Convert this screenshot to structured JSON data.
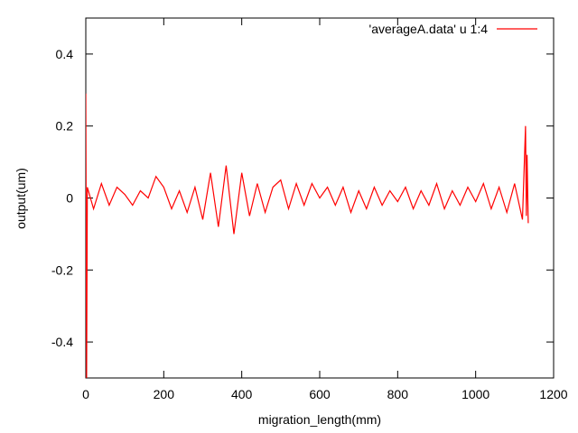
{
  "chart_data": {
    "type": "line",
    "xlabel": "migration_length(mm)",
    "ylabel": "output(um)",
    "xlim": [
      0,
      1200
    ],
    "ylim": [
      -0.5,
      0.5
    ],
    "xticks": [
      0,
      200,
      400,
      600,
      800,
      1000,
      1200
    ],
    "yticks": [
      -0.4,
      -0.2,
      0,
      0.2,
      0.4
    ],
    "ytick_labels": [
      "-0.4",
      "-0.2",
      "0",
      "0.2",
      "0.4"
    ],
    "grid": false,
    "legend_position": "top-right",
    "series": [
      {
        "name": "'averageA.data' u 1:4",
        "color": "#ff0000",
        "x": [
          0,
          2,
          4,
          20,
          40,
          60,
          80,
          100,
          120,
          140,
          160,
          180,
          200,
          220,
          240,
          260,
          280,
          300,
          320,
          340,
          360,
          380,
          400,
          420,
          440,
          460,
          480,
          500,
          520,
          540,
          560,
          580,
          600,
          620,
          640,
          660,
          680,
          700,
          720,
          740,
          760,
          780,
          800,
          820,
          840,
          860,
          880,
          900,
          920,
          940,
          960,
          980,
          1000,
          1020,
          1040,
          1060,
          1080,
          1100,
          1120,
          1128,
          1130,
          1132,
          1135
        ],
        "y": [
          0.29,
          -0.5,
          0.03,
          -0.03,
          0.04,
          -0.02,
          0.03,
          0.01,
          -0.02,
          0.02,
          0.0,
          0.06,
          0.03,
          -0.03,
          0.02,
          -0.04,
          0.03,
          -0.06,
          0.07,
          -0.08,
          0.09,
          -0.1,
          0.07,
          -0.05,
          0.04,
          -0.04,
          0.03,
          0.05,
          -0.03,
          0.04,
          -0.02,
          0.04,
          0.0,
          0.03,
          -0.02,
          0.03,
          -0.04,
          0.02,
          -0.03,
          0.03,
          -0.02,
          0.02,
          -0.01,
          0.03,
          -0.03,
          0.02,
          -0.02,
          0.04,
          -0.03,
          0.02,
          -0.02,
          0.03,
          -0.01,
          0.04,
          -0.03,
          0.03,
          -0.04,
          0.04,
          -0.06,
          0.2,
          -0.05,
          0.12,
          -0.07
        ]
      }
    ]
  }
}
